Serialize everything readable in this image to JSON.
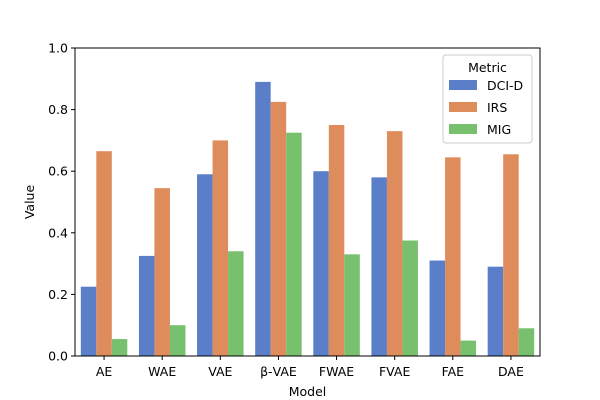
{
  "chart_data": {
    "type": "bar",
    "title": "",
    "xlabel": "Model",
    "ylabel": "Value",
    "ylim": [
      0,
      1.0
    ],
    "yticks": [
      0.0,
      0.2,
      0.4,
      0.6,
      0.8,
      1.0
    ],
    "ytick_labels": [
      "0.0",
      "0.2",
      "0.4",
      "0.6",
      "0.8",
      "1.0"
    ],
    "categories": [
      "AE",
      "WAE",
      "VAE",
      "β-VAE",
      "FWAE",
      "FVAE",
      "FAE",
      "DAE"
    ],
    "series": [
      {
        "name": "DCI-D",
        "color": "#5a7fc8",
        "values": [
          0.225,
          0.325,
          0.59,
          0.89,
          0.6,
          0.58,
          0.31,
          0.29
        ]
      },
      {
        "name": "IRS",
        "color": "#df8c5c",
        "values": [
          0.665,
          0.545,
          0.7,
          0.825,
          0.75,
          0.73,
          0.645,
          0.655
        ]
      },
      {
        "name": "MIG",
        "color": "#77c16e",
        "values": [
          0.055,
          0.1,
          0.34,
          0.725,
          0.33,
          0.375,
          0.05,
          0.09
        ]
      }
    ],
    "legend": {
      "title": "Metric",
      "placement": "top-right"
    },
    "grid": false
  }
}
